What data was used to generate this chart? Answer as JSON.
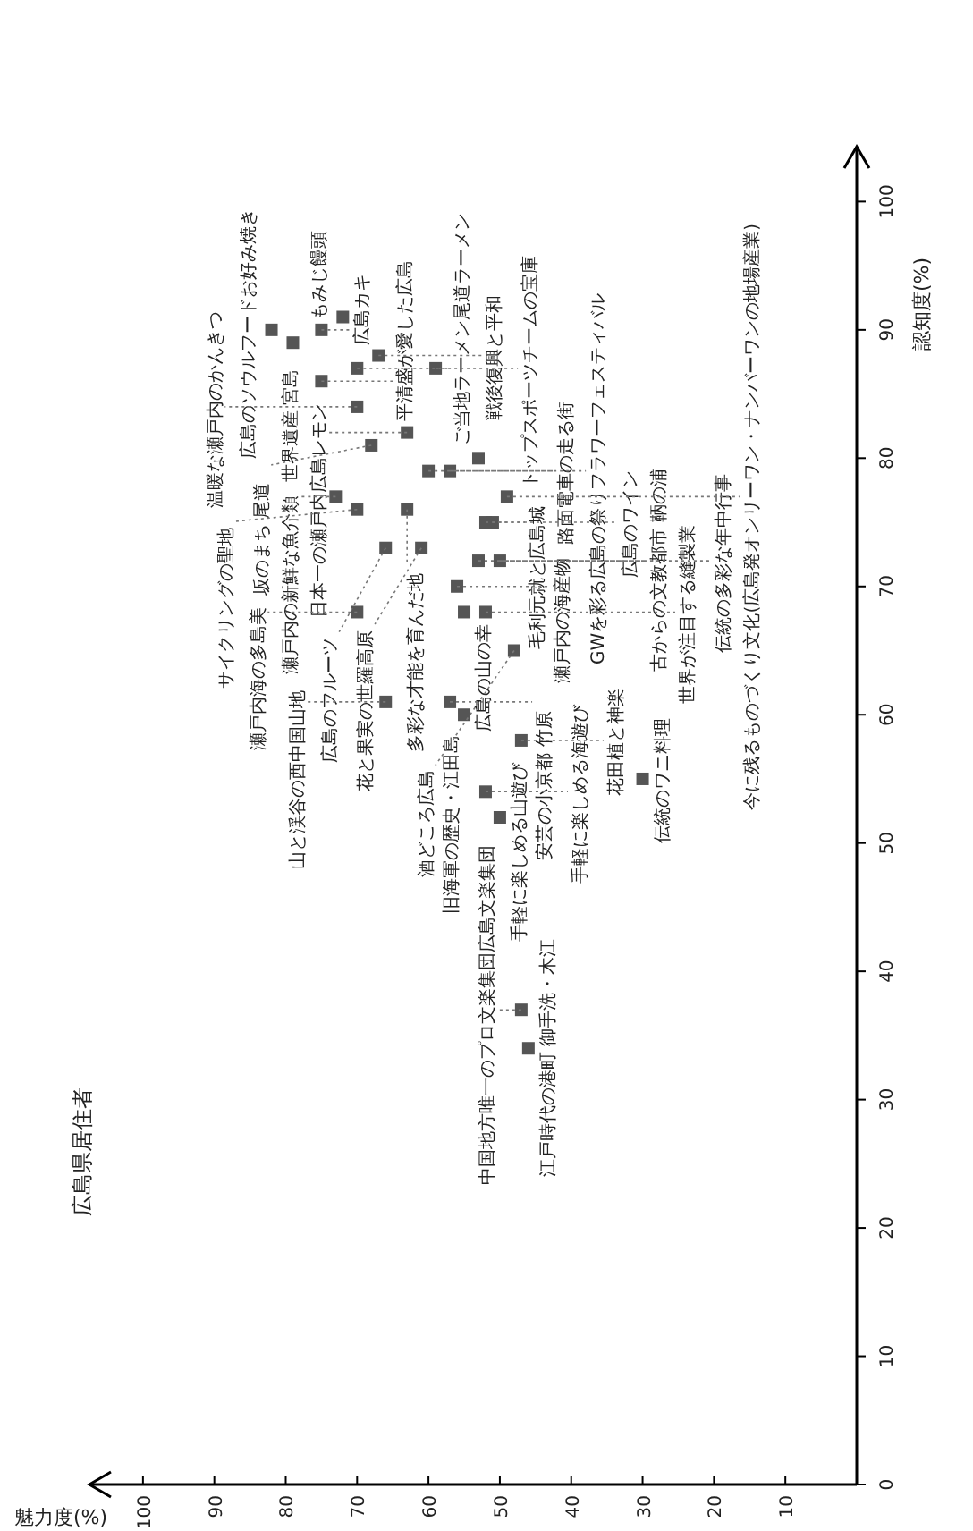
{
  "chart_data": {
    "type": "scatter",
    "xlabel": "魅力度(%)",
    "ylabel": "認知度(%)",
    "color": "#555555",
    "marker": "square",
    "xlim": [
      107,
      0
    ],
    "ylim": [
      0,
      104
    ],
    "xticks": [
      10,
      20,
      30,
      40,
      50,
      60,
      70,
      80,
      90,
      100
    ],
    "yticks": [
      0,
      10,
      20,
      30,
      40,
      50,
      60,
      70,
      80,
      90,
      100
    ],
    "x": [
      82,
      79,
      75,
      72,
      75,
      70,
      67,
      59,
      70,
      63,
      68,
      57,
      60,
      73,
      63,
      52,
      70,
      61,
      66,
      56,
      55,
      51,
      53,
      66,
      70,
      55,
      57,
      52,
      50,
      30,
      47,
      46,
      47,
      52,
      50,
      49,
      48,
      53
    ],
    "values": [
      90,
      89,
      90,
      91,
      86,
      87,
      88,
      87,
      84,
      82,
      81,
      79,
      79,
      77,
      76,
      75,
      76,
      73,
      73,
      70,
      68,
      75,
      72,
      61,
      68,
      60,
      61,
      54,
      52,
      55,
      37,
      34,
      58,
      68,
      72,
      77,
      65,
      80
    ],
    "annotations": [
      "広島県居住者",
      {
        "text": "広島のソウルフードお好み焼き",
        "x": 82,
        "y": 90
      },
      {
        "text": "世界遺産 宮島",
        "x": 79,
        "y": 89
      },
      {
        "text": "広島カキ",
        "x": 75,
        "y": 90
      },
      {
        "text": "もみじ饅頭",
        "x": 72,
        "y": 91
      },
      {
        "text": "平清盛が愛した広島",
        "x": 75,
        "y": 86
      },
      {
        "text": "ご当地ラーメン尾道ラーメン",
        "x": 70,
        "y": 87
      },
      {
        "text": "戦後復興と平和",
        "x": 67,
        "y": 88
      },
      {
        "text": "トップスポーツチームの宝庫",
        "x": 59,
        "y": 87
      },
      {
        "text": "温暖な瀬戸内のかんきつ",
        "x": 70,
        "y": 84
      },
      {
        "text": "日本一の瀬戸内広島レモン",
        "x": 63,
        "y": 82
      },
      {
        "text": "坂のまち 尾道",
        "x": 68,
        "y": 81
      },
      {
        "text": "路面電車の走る街",
        "x": 57,
        "y": 79
      },
      {
        "text": "GWを彩る広島の祭りフラワーフェスティバル",
        "x": 60,
        "y": 79
      },
      {
        "text": "瀬戸内の新鮮な魚介類",
        "x": 73,
        "y": 77
      },
      {
        "text": "多彩な才能を育んだ地",
        "x": 63,
        "y": 76
      },
      {
        "text": "毛利元就と広島城",
        "x": 52,
        "y": 75
      },
      {
        "text": "サイクリングの聖地",
        "x": 70,
        "y": 76
      },
      {
        "text": "花と果実の世羅高原",
        "x": 61,
        "y": 73
      },
      {
        "text": "広島のフルーツ",
        "x": 66,
        "y": 73
      },
      {
        "text": "瀬戸内の海産物",
        "x": 56,
        "y": 70
      },
      {
        "text": "広島の山の幸",
        "x": 55,
        "y": 68
      },
      {
        "text": "広島のワイン",
        "x": 51,
        "y": 75
      },
      {
        "text": "古からの文教都市 鞆の浦",
        "x": 53,
        "y": 72
      },
      {
        "text": "山と渓谷の西中国山地",
        "x": 66,
        "y": 61
      },
      {
        "text": "瀬戸内海の多島美",
        "x": 70,
        "y": 68
      },
      {
        "text": "旧海軍の歴史・江田島",
        "x": 55,
        "y": 60
      },
      {
        "text": "安芸の小京都 竹原",
        "x": 57,
        "y": 61
      },
      {
        "text": "手軽に楽しめる海遊び",
        "x": 52,
        "y": 54
      },
      {
        "text": "手軽に楽しめる山遊び",
        "x": 50,
        "y": 52
      },
      {
        "text": "伝統のワニ料理",
        "x": 30,
        "y": 55
      },
      {
        "text": "中国地方唯一のプロ文楽集団広島文楽集団",
        "x": 47,
        "y": 37
      },
      {
        "text": "江戸時代の港町 御手洗・木江",
        "x": 46,
        "y": 34
      },
      {
        "text": "花田植と神楽",
        "x": 47,
        "y": 58
      },
      {
        "text": "世界が注目する縫製業",
        "x": 52,
        "y": 68
      },
      {
        "text": "伝統の多彩な年中行事",
        "x": 50,
        "y": 72
      },
      {
        "text": "今に残るものづくり文化(広島発オンリーワン・ナンバーワンの地場産業)",
        "x": 49,
        "y": 77
      },
      {
        "text": "酒どころ広島",
        "x": 48,
        "y": 65
      }
    ]
  }
}
